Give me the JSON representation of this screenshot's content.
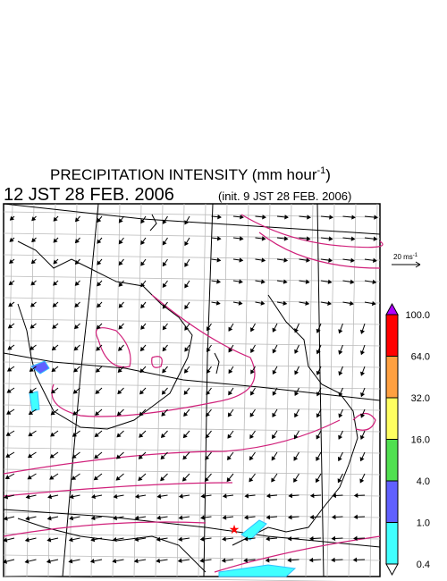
{
  "header": {
    "title_main": "PRECIPITATION INTENSITY (mm hour",
    "title_exponent": "-1",
    "title_close": ")",
    "valid_time": "12 JST 28 FEB. 2006",
    "init_time": "(init. 9 JST 28 FEB. 2006)"
  },
  "reference_vector": {
    "label": "20 ms",
    "exponent": "-1"
  },
  "colorbar": {
    "labels": [
      "100.0",
      "64.0",
      "32.0",
      "16.0",
      "4.0",
      "1.0",
      "0.4"
    ],
    "colors": [
      "#b000ff",
      "#ff0000",
      "#ffa040",
      "#ffff60",
      "#50e050",
      "#6060ff",
      "#40ffff",
      "#ffffff"
    ]
  }
}
